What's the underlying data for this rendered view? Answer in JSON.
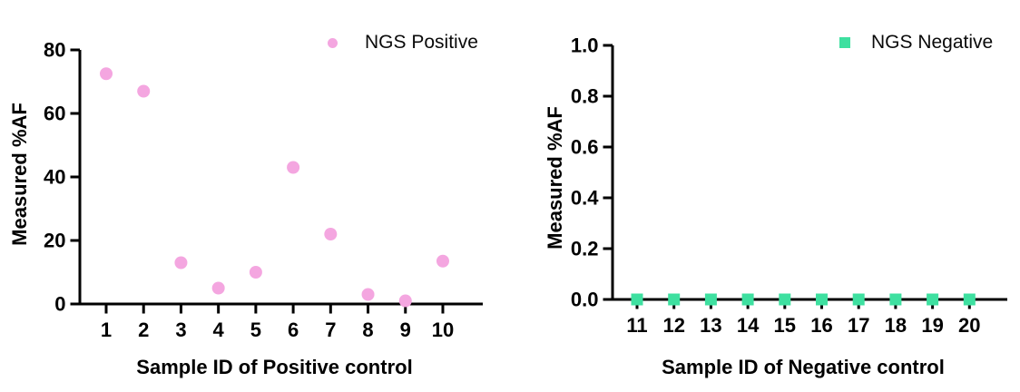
{
  "figure": {
    "background": "#ffffff",
    "axis_color": "#000000"
  },
  "chart_data": [
    {
      "id": "positive-control",
      "type": "scatter",
      "marker": "circle",
      "marker_color": "#F4A6E0",
      "marker_size": 14,
      "legend": "NGS Positive",
      "legend_position": "top-right",
      "xlabel": "Sample ID of Positive control",
      "ylabel": "Measured %AF",
      "categories": [
        "1",
        "2",
        "3",
        "4",
        "5",
        "6",
        "7",
        "8",
        "9",
        "10"
      ],
      "values": [
        72.5,
        67,
        13,
        5,
        10,
        43,
        22,
        3,
        1,
        13.5
      ],
      "ylim": [
        0,
        80
      ],
      "yticks": [
        0,
        20,
        40,
        60,
        80
      ],
      "ytick_labels": [
        "0",
        "20",
        "40",
        "60",
        "80"
      ],
      "grid": false
    },
    {
      "id": "negative-control",
      "type": "scatter",
      "marker": "square",
      "marker_color": "#3EE0A0",
      "marker_size": 13,
      "legend": "NGS Negative",
      "legend_position": "top-right",
      "xlabel": "Sample ID of Negative control",
      "ylabel": "Measured %AF",
      "categories": [
        "11",
        "12",
        "13",
        "14",
        "15",
        "16",
        "17",
        "18",
        "19",
        "20"
      ],
      "values": [
        0,
        0,
        0,
        0,
        0,
        0,
        0,
        0,
        0,
        0
      ],
      "ylim": [
        0,
        1.0
      ],
      "yticks": [
        0,
        0.2,
        0.4,
        0.6,
        0.8,
        1.0
      ],
      "ytick_labels": [
        "0.0",
        "0.2",
        "0.4",
        "0.6",
        "0.8",
        "1.0"
      ],
      "grid": false
    }
  ]
}
